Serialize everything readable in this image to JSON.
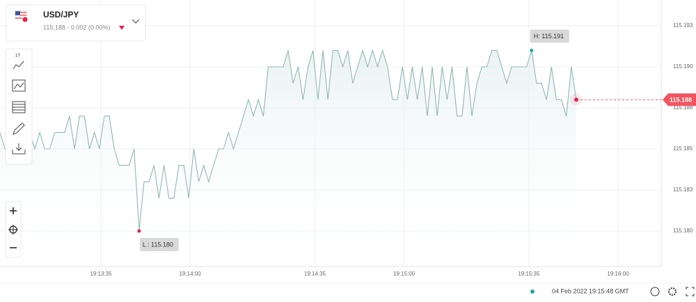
{
  "header": {
    "symbol": "USD/JPY",
    "quote": "115.188 - 0.002 (0.00%)"
  },
  "toolbar": {
    "interval": "1T"
  },
  "footer": {
    "timestamp": "04 Feb 2022 19:15:48 GMT"
  },
  "chart_data": {
    "type": "line",
    "color": "#8fb8b4",
    "grid": true,
    "values": [
      115.186,
      115.185,
      115.185,
      115.185,
      115.186,
      115.185,
      115.186,
      115.185,
      115.186,
      115.185,
      115.185,
      115.186,
      115.186,
      115.186,
      115.187,
      115.185,
      115.187,
      115.187,
      115.185,
      115.186,
      115.185,
      115.187,
      115.187,
      115.185,
      115.184,
      115.184,
      115.184,
      115.185,
      115.18,
      115.183,
      115.183,
      115.184,
      115.182,
      115.184,
      115.182,
      115.182,
      115.184,
      115.184,
      115.182,
      115.185,
      115.183,
      115.184,
      115.183,
      115.184,
      115.185,
      115.185,
      115.186,
      115.185,
      115.186,
      115.187,
      115.188,
      115.187,
      115.188,
      115.187,
      115.19,
      115.19,
      115.19,
      115.19,
      115.191,
      115.189,
      115.19,
      115.188,
      115.19,
      115.191,
      115.188,
      115.191,
      115.188,
      115.191,
      115.191,
      115.19,
      115.191,
      115.189,
      115.19,
      115.191,
      115.19,
      115.191,
      115.19,
      115.191,
      115.19,
      115.188,
      115.188,
      115.19,
      115.188,
      115.19,
      115.188,
      115.19,
      115.187,
      115.19,
      115.187,
      115.19,
      115.188,
      115.19,
      115.187,
      115.187,
      115.19,
      115.187,
      115.189,
      115.19,
      115.19,
      115.191,
      115.191,
      115.19,
      115.189,
      115.19,
      115.19,
      115.19,
      115.19,
      115.191,
      115.189,
      115.189,
      115.188,
      115.19,
      115.188,
      115.188,
      115.187,
      115.19,
      115.188
    ],
    "high_label": "H: 115.191",
    "low_label": "L : 115.180",
    "last_label": "115.188",
    "high_color": "#26a69a",
    "low_color": "#e91e4d",
    "ylim": [
      115.17784,
      115.19407
    ],
    "yticks": [
      {
        "value": 115.18,
        "label": "115.180"
      },
      {
        "value": 115.1825,
        "label": "115.183"
      },
      115.185,
      {
        "value": 115.1875,
        "label": "115.188"
      },
      {
        "value": 115.19,
        "label": "115.190"
      },
      {
        "value": 115.1925,
        "label": "115.193"
      }
    ],
    "xlim": [
      69186.7,
      69372.1
    ],
    "xticks": [
      {
        "value": 69215,
        "label": "19:13:35"
      },
      {
        "value": 69240,
        "label": "19:14:00"
      },
      {
        "value": 69275,
        "label": "19:14:35"
      },
      {
        "value": 69300,
        "label": "19:15:00"
      },
      {
        "value": 69335,
        "label": "19:15:35"
      },
      {
        "value": 69360,
        "label": "19:16:00"
      }
    ]
  }
}
